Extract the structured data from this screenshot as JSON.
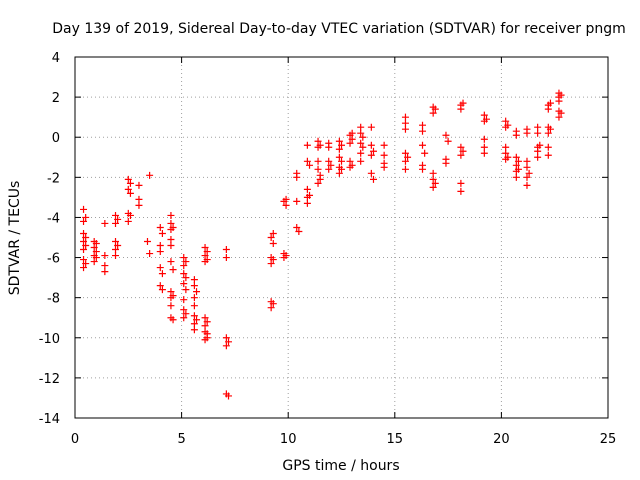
{
  "chart_data": {
    "type": "scatter",
    "title": "Day 139 of 2019, Sidereal Day-to-day VTEC variation (SDTVAR) for receiver pngm",
    "xlabel": "GPS time / hours",
    "ylabel": "SDTVAR / TECUs",
    "xlim": [
      0,
      25
    ],
    "ylim": [
      -14,
      4
    ],
    "xticks": [
      "0",
      "5",
      "10",
      "15",
      "20",
      "25"
    ],
    "yticks": [
      "-14",
      "-12",
      "-10",
      "-8",
      "-6",
      "-4",
      "-2",
      "0",
      "2",
      "4"
    ],
    "grid": true,
    "marker": "plus",
    "color": "#ff0000",
    "series": [
      {
        "name": "SDTVAR",
        "points": [
          [
            0.4,
            -3.6
          ],
          [
            0.4,
            -4.2
          ],
          [
            0.4,
            -4.8
          ],
          [
            0.4,
            -5.2
          ],
          [
            0.4,
            -5.6
          ],
          [
            0.4,
            -6.1
          ],
          [
            0.4,
            -6.5
          ],
          [
            0.5,
            -4.0
          ],
          [
            0.5,
            -5.0
          ],
          [
            0.5,
            -5.4
          ],
          [
            0.5,
            -6.3
          ],
          [
            0.9,
            -5.2
          ],
          [
            0.9,
            -5.5
          ],
          [
            0.9,
            -5.9
          ],
          [
            0.9,
            -6.2
          ],
          [
            1.0,
            -5.3
          ],
          [
            1.0,
            -5.7
          ],
          [
            1.0,
            -6.0
          ],
          [
            1.4,
            -4.3
          ],
          [
            1.4,
            -5.9
          ],
          [
            1.4,
            -6.4
          ],
          [
            1.4,
            -6.7
          ],
          [
            1.9,
            -3.9
          ],
          [
            1.9,
            -4.3
          ],
          [
            1.9,
            -5.2
          ],
          [
            1.9,
            -5.6
          ],
          [
            1.9,
            -5.9
          ],
          [
            2.0,
            -4.1
          ],
          [
            2.0,
            -5.4
          ],
          [
            2.5,
            -2.1
          ],
          [
            2.5,
            -2.6
          ],
          [
            2.5,
            -3.8
          ],
          [
            2.5,
            -4.2
          ],
          [
            2.6,
            -2.3
          ],
          [
            2.6,
            -2.8
          ],
          [
            2.6,
            -3.9
          ],
          [
            3.0,
            -2.4
          ],
          [
            3.0,
            -3.1
          ],
          [
            3.0,
            -3.4
          ],
          [
            3.5,
            -1.9
          ],
          [
            3.4,
            -5.2
          ],
          [
            3.5,
            -5.8
          ],
          [
            4.0,
            -4.5
          ],
          [
            4.0,
            -5.4
          ],
          [
            4.0,
            -5.7
          ],
          [
            4.0,
            -6.5
          ],
          [
            4.0,
            -7.4
          ],
          [
            4.1,
            -4.8
          ],
          [
            4.1,
            -6.8
          ],
          [
            4.1,
            -7.6
          ],
          [
            4.5,
            -3.9
          ],
          [
            4.5,
            -4.3
          ],
          [
            4.5,
            -4.6
          ],
          [
            4.5,
            -5.1
          ],
          [
            4.5,
            -5.4
          ],
          [
            4.5,
            -6.2
          ],
          [
            4.5,
            -7.7
          ],
          [
            4.5,
            -8.0
          ],
          [
            4.5,
            -8.4
          ],
          [
            4.5,
            -9.0
          ],
          [
            4.6,
            -4.5
          ],
          [
            4.6,
            -6.6
          ],
          [
            4.6,
            -7.9
          ],
          [
            4.6,
            -9.1
          ],
          [
            5.1,
            -6.0
          ],
          [
            5.1,
            -6.4
          ],
          [
            5.1,
            -6.8
          ],
          [
            5.1,
            -7.3
          ],
          [
            5.1,
            -8.1
          ],
          [
            5.1,
            -8.6
          ],
          [
            5.1,
            -9.0
          ],
          [
            5.2,
            -6.2
          ],
          [
            5.2,
            -7.0
          ],
          [
            5.2,
            -7.6
          ],
          [
            5.2,
            -8.8
          ],
          [
            5.6,
            -7.1
          ],
          [
            5.6,
            -7.4
          ],
          [
            5.6,
            -8.0
          ],
          [
            5.6,
            -8.4
          ],
          [
            5.6,
            -8.9
          ],
          [
            5.6,
            -9.3
          ],
          [
            5.6,
            -9.6
          ],
          [
            5.7,
            -7.7
          ],
          [
            5.7,
            -9.1
          ],
          [
            6.1,
            -5.5
          ],
          [
            6.1,
            -5.9
          ],
          [
            6.1,
            -6.2
          ],
          [
            6.1,
            -9.0
          ],
          [
            6.1,
            -9.4
          ],
          [
            6.1,
            -9.7
          ],
          [
            6.1,
            -10.1
          ],
          [
            6.2,
            -5.7
          ],
          [
            6.2,
            -6.1
          ],
          [
            6.2,
            -9.2
          ],
          [
            6.2,
            -9.8
          ],
          [
            6.2,
            -10.0
          ],
          [
            7.1,
            -5.6
          ],
          [
            7.1,
            -6.0
          ],
          [
            7.1,
            -10.0
          ],
          [
            7.1,
            -10.4
          ],
          [
            7.2,
            -10.2
          ],
          [
            7.2,
            -12.9
          ],
          [
            7.1,
            -12.8
          ],
          [
            9.2,
            -5.0
          ],
          [
            9.2,
            -6.0
          ],
          [
            9.2,
            -6.3
          ],
          [
            9.2,
            -8.2
          ],
          [
            9.2,
            -8.5
          ],
          [
            9.3,
            -4.8
          ],
          [
            9.3,
            -5.3
          ],
          [
            9.3,
            -6.1
          ],
          [
            9.3,
            -8.3
          ],
          [
            9.8,
            -3.2
          ],
          [
            9.8,
            -5.8
          ],
          [
            9.8,
            -6.0
          ],
          [
            9.9,
            -3.1
          ],
          [
            9.9,
            -3.4
          ],
          [
            9.9,
            -5.9
          ],
          [
            10.4,
            -1.8
          ],
          [
            10.4,
            -2.0
          ],
          [
            10.4,
            -3.2
          ],
          [
            10.4,
            -4.5
          ],
          [
            10.5,
            -4.7
          ],
          [
            10.9,
            -0.4
          ],
          [
            10.9,
            -1.2
          ],
          [
            10.9,
            -2.6
          ],
          [
            10.9,
            -3.0
          ],
          [
            10.9,
            -3.3
          ],
          [
            11.0,
            -1.4
          ],
          [
            11.0,
            -2.9
          ],
          [
            11.4,
            -0.2
          ],
          [
            11.4,
            -0.5
          ],
          [
            11.4,
            -1.2
          ],
          [
            11.4,
            -1.6
          ],
          [
            11.4,
            -2.3
          ],
          [
            11.5,
            -0.4
          ],
          [
            11.5,
            -1.9
          ],
          [
            11.5,
            -2.1
          ],
          [
            11.9,
            -0.3
          ],
          [
            11.9,
            -0.5
          ],
          [
            11.9,
            -1.2
          ],
          [
            11.9,
            -1.6
          ],
          [
            12.0,
            -1.4
          ],
          [
            12.4,
            -0.2
          ],
          [
            12.4,
            -0.6
          ],
          [
            12.4,
            -1.0
          ],
          [
            12.4,
            -1.5
          ],
          [
            12.4,
            -1.8
          ],
          [
            12.5,
            -0.4
          ],
          [
            12.5,
            -1.2
          ],
          [
            12.5,
            -1.6
          ],
          [
            12.9,
            0.1
          ],
          [
            12.9,
            -0.3
          ],
          [
            12.9,
            -1.2
          ],
          [
            12.9,
            -1.5
          ],
          [
            13.0,
            0.2
          ],
          [
            13.0,
            -0.1
          ],
          [
            13.0,
            -1.4
          ],
          [
            13.4,
            0.5
          ],
          [
            13.4,
            0.2
          ],
          [
            13.4,
            -0.3
          ],
          [
            13.4,
            -0.8
          ],
          [
            13.4,
            -1.2
          ],
          [
            13.5,
            0.0
          ],
          [
            13.5,
            -0.5
          ],
          [
            13.9,
            0.5
          ],
          [
            13.9,
            -0.4
          ],
          [
            13.9,
            -0.9
          ],
          [
            13.9,
            -1.8
          ],
          [
            14.0,
            -0.7
          ],
          [
            14.0,
            -2.1
          ],
          [
            14.5,
            -0.4
          ],
          [
            14.5,
            -0.9
          ],
          [
            14.5,
            -1.3
          ],
          [
            14.5,
            -1.5
          ],
          [
            15.5,
            1.0
          ],
          [
            15.5,
            0.7
          ],
          [
            15.5,
            0.4
          ],
          [
            15.5,
            -0.8
          ],
          [
            15.5,
            -1.2
          ],
          [
            15.5,
            -1.6
          ],
          [
            15.6,
            -1.0
          ],
          [
            16.3,
            0.6
          ],
          [
            16.3,
            0.3
          ],
          [
            16.3,
            -0.4
          ],
          [
            16.3,
            -1.4
          ],
          [
            16.3,
            -1.6
          ],
          [
            16.4,
            -0.8
          ],
          [
            16.8,
            1.5
          ],
          [
            16.8,
            1.2
          ],
          [
            16.8,
            -1.8
          ],
          [
            16.8,
            -2.1
          ],
          [
            16.8,
            -2.5
          ],
          [
            16.9,
            1.4
          ],
          [
            16.9,
            -2.3
          ],
          [
            17.4,
            0.1
          ],
          [
            17.4,
            -1.1
          ],
          [
            17.4,
            -1.3
          ],
          [
            17.5,
            -0.2
          ],
          [
            18.1,
            1.6
          ],
          [
            18.1,
            1.4
          ],
          [
            18.1,
            -0.5
          ],
          [
            18.1,
            -0.9
          ],
          [
            18.1,
            -2.3
          ],
          [
            18.1,
            -2.7
          ],
          [
            18.2,
            1.7
          ],
          [
            18.2,
            -0.7
          ],
          [
            19.2,
            1.1
          ],
          [
            19.2,
            0.8
          ],
          [
            19.2,
            -0.1
          ],
          [
            19.2,
            -0.5
          ],
          [
            19.2,
            -0.8
          ],
          [
            19.3,
            0.9
          ],
          [
            20.2,
            0.8
          ],
          [
            20.2,
            0.5
          ],
          [
            20.2,
            -0.5
          ],
          [
            20.2,
            -0.8
          ],
          [
            20.2,
            -1.1
          ],
          [
            20.3,
            0.6
          ],
          [
            20.3,
            -1.0
          ],
          [
            20.7,
            0.3
          ],
          [
            20.7,
            0.1
          ],
          [
            20.7,
            -1.0
          ],
          [
            20.7,
            -1.4
          ],
          [
            20.7,
            -1.7
          ],
          [
            20.7,
            -2.0
          ],
          [
            20.8,
            -1.2
          ],
          [
            20.8,
            -1.6
          ],
          [
            21.2,
            0.4
          ],
          [
            21.2,
            0.2
          ],
          [
            21.2,
            -1.2
          ],
          [
            21.2,
            -1.5
          ],
          [
            21.2,
            -2.0
          ],
          [
            21.2,
            -2.4
          ],
          [
            21.3,
            -1.8
          ],
          [
            21.7,
            0.5
          ],
          [
            21.7,
            0.2
          ],
          [
            21.7,
            -0.5
          ],
          [
            21.7,
            -0.7
          ],
          [
            21.7,
            -1.0
          ],
          [
            21.8,
            -0.4
          ],
          [
            22.2,
            1.6
          ],
          [
            22.2,
            1.4
          ],
          [
            22.2,
            0.5
          ],
          [
            22.2,
            0.2
          ],
          [
            22.2,
            -0.5
          ],
          [
            22.2,
            -0.9
          ],
          [
            22.3,
            1.7
          ],
          [
            22.3,
            0.4
          ],
          [
            22.7,
            2.2
          ],
          [
            22.7,
            2.0
          ],
          [
            22.7,
            1.8
          ],
          [
            22.7,
            1.3
          ],
          [
            22.7,
            1.0
          ],
          [
            22.8,
            2.1
          ],
          [
            22.8,
            1.2
          ]
        ]
      }
    ]
  }
}
